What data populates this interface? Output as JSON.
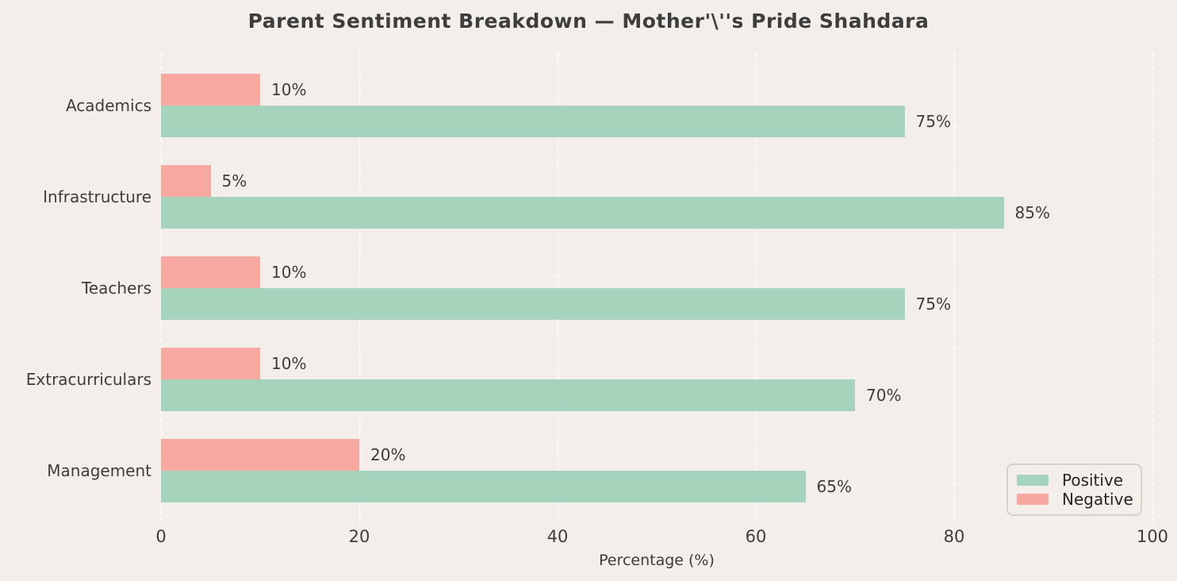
{
  "title": "Parent Sentiment Breakdown — Mother'\\''s Pride Shahdara",
  "colors": {
    "background": "#f3eee9",
    "grid": "#faf6f1",
    "positive": "#a5d3bb",
    "negative": "#f6a8a1",
    "text": "#3d3d3d",
    "legend_border": "#d8d1c9",
    "legend_text": "#262626"
  },
  "chart_data": {
    "type": "bar",
    "orientation": "horizontal",
    "title": "Parent Sentiment Breakdown — Mother'\\''s Pride Shahdara",
    "categories": [
      "Academics",
      "Infrastructure",
      "Teachers",
      "Extracurriculars",
      "Management"
    ],
    "series": [
      {
        "name": "Positive",
        "color": "#a5d3bb",
        "values": [
          75,
          85,
          75,
          70,
          65
        ]
      },
      {
        "name": "Negative",
        "color": "#f6a8a1",
        "values": [
          10,
          5,
          10,
          10,
          20
        ]
      }
    ],
    "value_labels": {
      "Positive": [
        "75%",
        "85%",
        "75%",
        "70%",
        "65%"
      ],
      "Negative": [
        "10%",
        "5%",
        "10%",
        "10%",
        "20%"
      ]
    },
    "xlabel": "Percentage (%)",
    "xlim": [
      0,
      100
    ],
    "xticks": [
      0,
      20,
      40,
      60,
      80,
      100
    ],
    "value_suffix": "%",
    "grid": "vertical-dashed",
    "legend_position": "lower-right"
  },
  "legend": {
    "positive_label": "Positive",
    "negative_label": "Negative"
  }
}
